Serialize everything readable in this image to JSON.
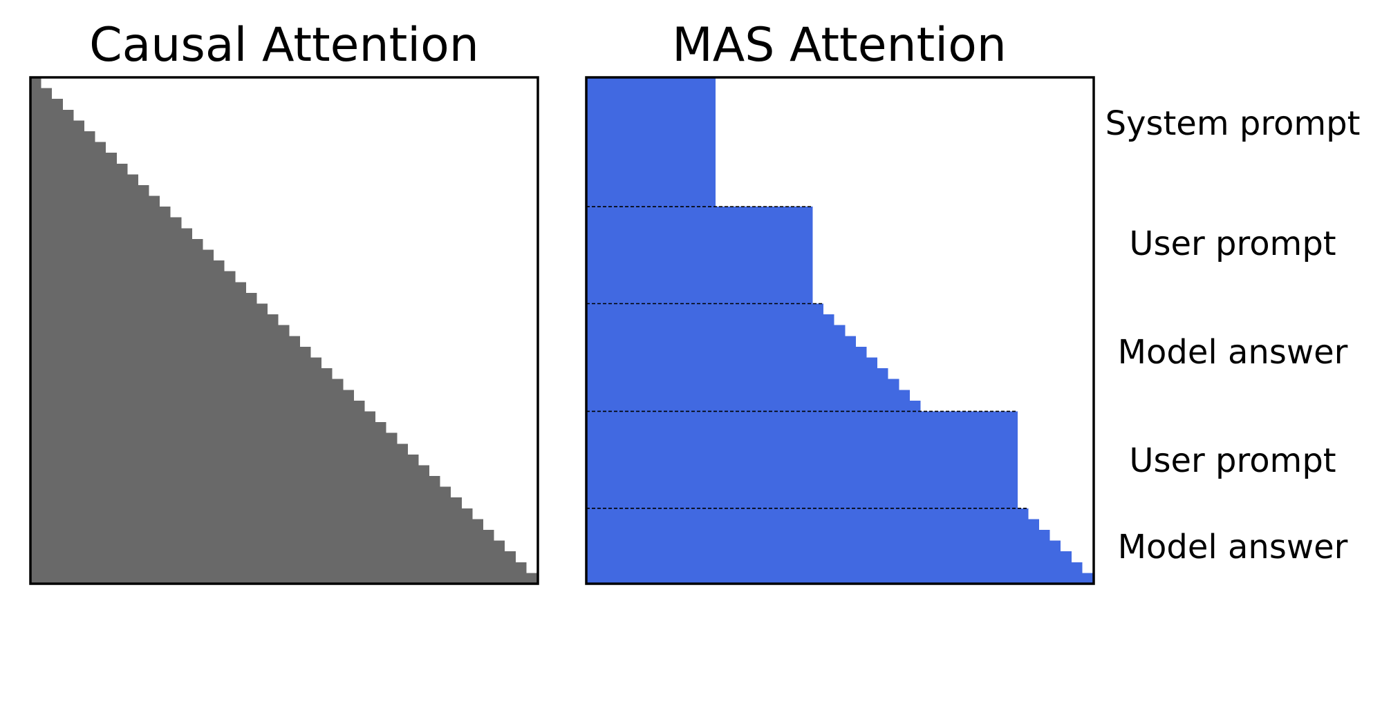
{
  "panels": {
    "causal": {
      "title": "Causal Attention"
    },
    "mas": {
      "title": "MAS Attention"
    }
  },
  "segments": [
    {
      "label": "System prompt"
    },
    {
      "label": "User prompt"
    },
    {
      "label": "Model answer"
    },
    {
      "label": "User prompt"
    },
    {
      "label": "Model answer"
    }
  ]
}
